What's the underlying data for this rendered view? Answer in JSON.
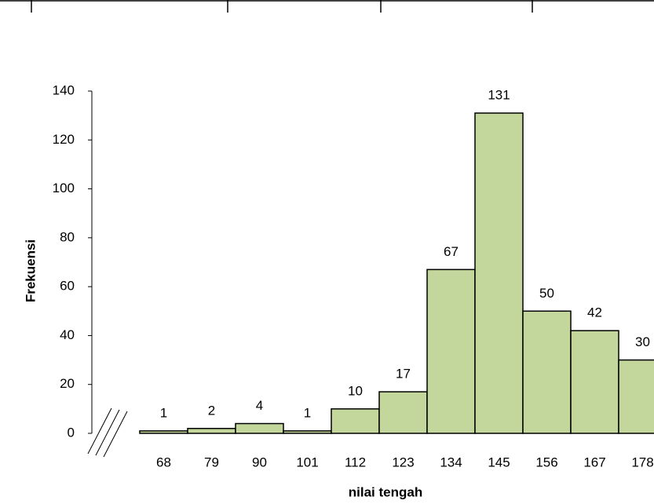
{
  "chart_data": {
    "type": "bar",
    "categories": [
      "68",
      "79",
      "90",
      "101",
      "112",
      "123",
      "134",
      "145",
      "156",
      "167",
      "178"
    ],
    "values": [
      1,
      2,
      4,
      1,
      10,
      17,
      67,
      131,
      50,
      42,
      30
    ],
    "color": "#c3d69b",
    "xlabel": "nilai tengah",
    "ylabel": "Frekuensi",
    "ylim": [
      0,
      140
    ],
    "yticks": [
      0,
      20,
      40,
      60,
      80,
      100,
      120,
      140
    ],
    "grid": false,
    "data_labels": true
  }
}
